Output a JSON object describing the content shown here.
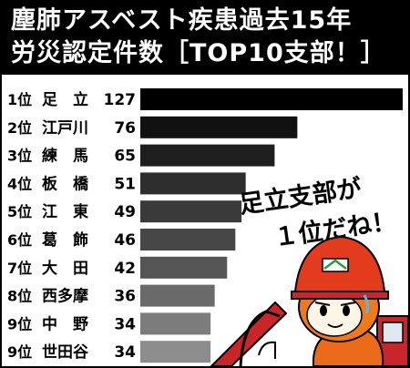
{
  "chart_data": {
    "type": "bar",
    "orientation": "horizontal",
    "title": "塵肺アスベスト疾患過去15年",
    "subtitle": "労災認定件数［TOP10支部！］",
    "rank_labels": [
      "1位",
      "2位",
      "3位",
      "4位",
      "5位",
      "6位",
      "7位",
      "8位",
      "9位",
      "9位"
    ],
    "categories": [
      "足　立",
      "江戸川",
      "練　馬",
      "板　橋",
      "江　東",
      "葛　飾",
      "大　田",
      "西多摩",
      "中　野",
      "世田谷"
    ],
    "values": [
      127,
      76,
      65,
      51,
      49,
      46,
      42,
      36,
      34,
      34
    ],
    "xlim": [
      0,
      127
    ],
    "grid": false,
    "legend": "none",
    "bar_colors": [
      "#000000",
      "#111111",
      "#1e1e1e",
      "#2e2e2e",
      "#3a3a3a",
      "#474747",
      "#555555",
      "#6a6a6a",
      "#7c7c7c",
      "#8c8c8c"
    ],
    "annotation": [
      "足立支部が",
      "１位だね！"
    ]
  }
}
